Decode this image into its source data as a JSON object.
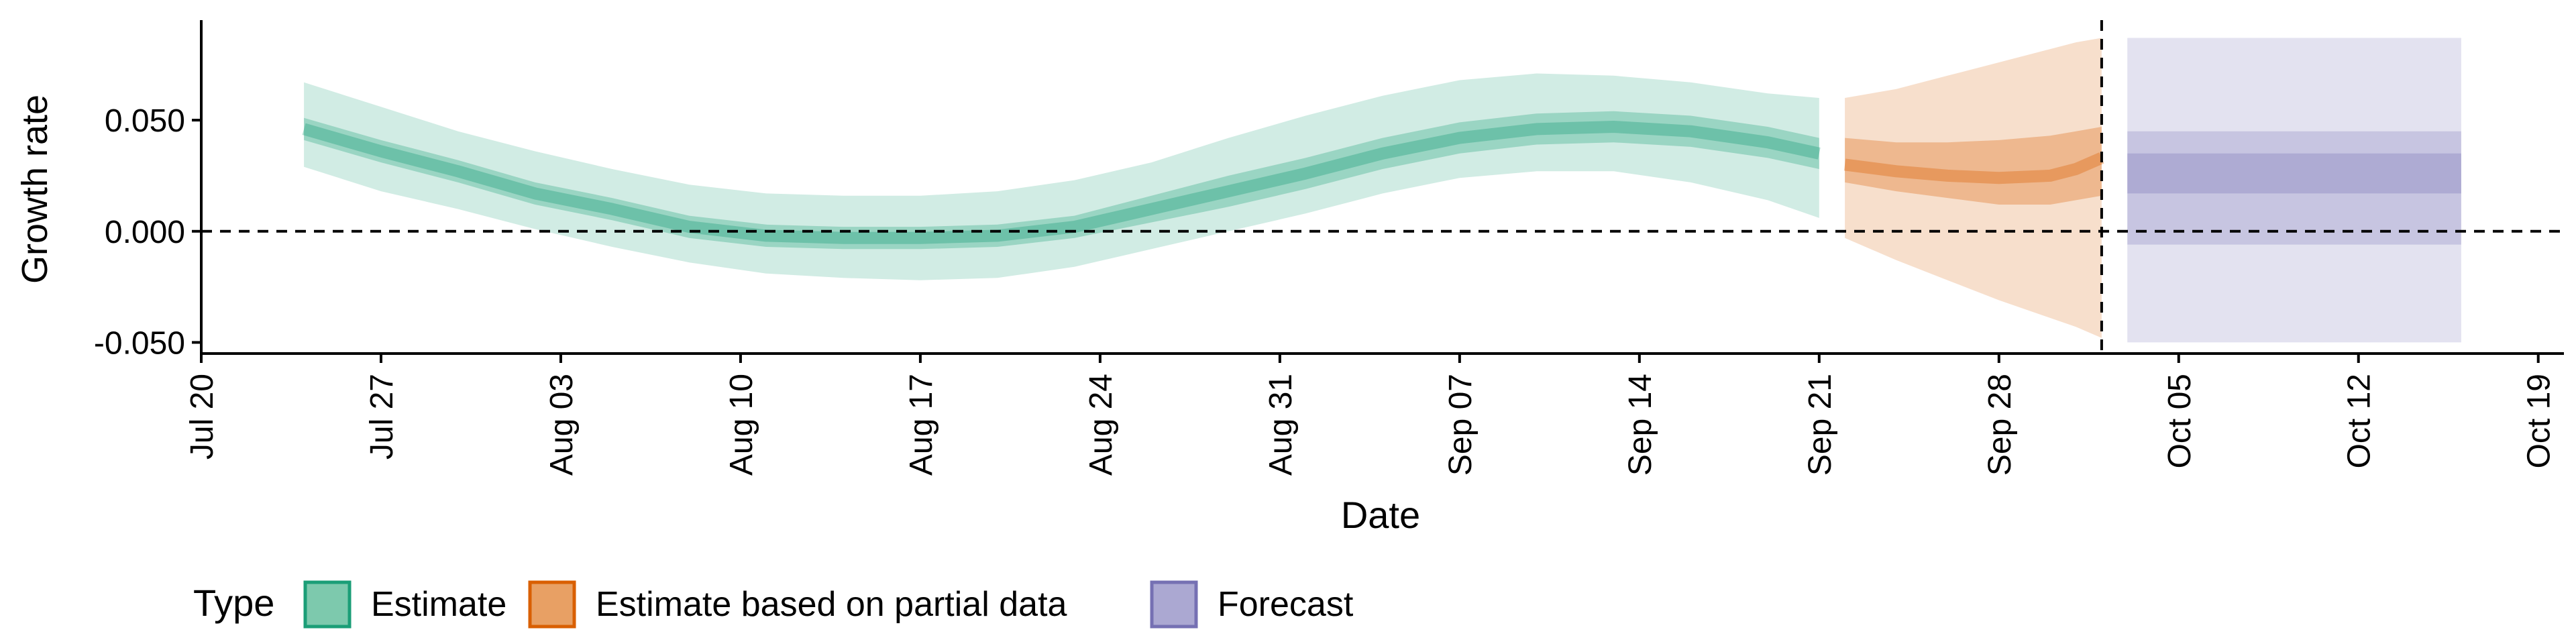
{
  "chart_data": {
    "type": "area",
    "xlabel": "Date",
    "ylabel": "Growth rate",
    "x_ticks": [
      "Jul 20",
      "Jul 27",
      "Aug 03",
      "Aug 10",
      "Aug 17",
      "Aug 24",
      "Aug 31",
      "Sep 07",
      "Sep 14",
      "Sep 21",
      "Sep 28",
      "Oct 05",
      "Oct 12",
      "Oct 19"
    ],
    "y_ticks": [
      "-0.050",
      "0.000",
      "0.050"
    ],
    "y_tick_values": [
      -0.05,
      0,
      0.05
    ],
    "xlim": [
      "2020-07-20",
      "2020-10-20"
    ],
    "ylim": [
      -0.055,
      0.095
    ],
    "reference_lines": {
      "horizontal_y": 0,
      "vertical_date": "2020-10-02"
    },
    "grid": false,
    "legend": {
      "title": "Type",
      "position": "bottom-left",
      "items": [
        {
          "label": "Estimate",
          "fill": "#7dc9ad",
          "border": "#1b9e77"
        },
        {
          "label": "Estimate based on partial data",
          "fill": "#e8a064",
          "border": "#d95f02"
        },
        {
          "label": "Forecast",
          "fill": "#aba8d2",
          "border": "#7570b3"
        }
      ]
    },
    "series": [
      {
        "name": "Estimate",
        "color": "#1b9e77",
        "dates": [
          "2020-07-24",
          "2020-07-27",
          "2020-07-30",
          "2020-08-02",
          "2020-08-05",
          "2020-08-08",
          "2020-08-11",
          "2020-08-14",
          "2020-08-17",
          "2020-08-20",
          "2020-08-23",
          "2020-08-26",
          "2020-08-29",
          "2020-09-01",
          "2020-09-04",
          "2020-09-07",
          "2020-09-10",
          "2020-09-13",
          "2020-09-16",
          "2020-09-19",
          "2020-09-21"
        ],
        "median": [
          0.046,
          0.036,
          0.027,
          0.017,
          0.01,
          0.002,
          -0.002,
          -0.003,
          -0.003,
          -0.002,
          0.002,
          0.01,
          0.018,
          0.026,
          0.035,
          0.042,
          0.046,
          0.047,
          0.045,
          0.04,
          0.035
        ],
        "lower_50": [
          0.041,
          0.031,
          0.022,
          0.012,
          0.005,
          -0.003,
          -0.007,
          -0.008,
          -0.008,
          -0.007,
          -0.003,
          0.004,
          0.011,
          0.019,
          0.028,
          0.035,
          0.039,
          0.04,
          0.038,
          0.033,
          0.028
        ],
        "upper_50": [
          0.051,
          0.041,
          0.032,
          0.022,
          0.015,
          0.007,
          0.003,
          0.002,
          0.002,
          0.003,
          0.007,
          0.016,
          0.025,
          0.033,
          0.042,
          0.049,
          0.053,
          0.054,
          0.052,
          0.047,
          0.042
        ],
        "lower_90": [
          0.029,
          0.018,
          0.01,
          0.001,
          -0.007,
          -0.014,
          -0.019,
          -0.021,
          -0.022,
          -0.021,
          -0.016,
          -0.008,
          0.0,
          0.008,
          0.017,
          0.024,
          0.027,
          0.027,
          0.022,
          0.014,
          0.006
        ],
        "upper_90": [
          0.067,
          0.056,
          0.045,
          0.036,
          0.028,
          0.021,
          0.017,
          0.016,
          0.016,
          0.018,
          0.023,
          0.031,
          0.042,
          0.052,
          0.061,
          0.068,
          0.071,
          0.07,
          0.067,
          0.062,
          0.06
        ]
      },
      {
        "name": "Estimate based on partial data",
        "color": "#d95f02",
        "dates": [
          "2020-09-22",
          "2020-09-24",
          "2020-09-26",
          "2020-09-28",
          "2020-09-30",
          "2020-10-01",
          "2020-10-02"
        ],
        "median": [
          0.03,
          0.027,
          0.025,
          0.024,
          0.025,
          0.028,
          0.033
        ],
        "lower_50": [
          0.022,
          0.018,
          0.015,
          0.012,
          0.012,
          0.014,
          0.016
        ],
        "upper_50": [
          0.042,
          0.04,
          0.04,
          0.041,
          0.043,
          0.045,
          0.047
        ],
        "lower_90": [
          -0.003,
          -0.013,
          -0.022,
          -0.031,
          -0.039,
          -0.043,
          -0.048
        ],
        "upper_90": [
          0.06,
          0.064,
          0.07,
          0.076,
          0.082,
          0.085,
          0.087
        ]
      },
      {
        "name": "Forecast",
        "color": "#7570b3",
        "dates": [
          "2020-10-03",
          "2020-10-16"
        ],
        "median": [
          0.026,
          0.026
        ],
        "lower_30": [
          0.017,
          0.017
        ],
        "upper_30": [
          0.035,
          0.035
        ],
        "lower_60": [
          -0.006,
          -0.006
        ],
        "upper_60": [
          0.045,
          0.045
        ],
        "lower_90": [
          -0.05,
          -0.05
        ],
        "upper_90": [
          0.087,
          0.087
        ]
      }
    ]
  }
}
